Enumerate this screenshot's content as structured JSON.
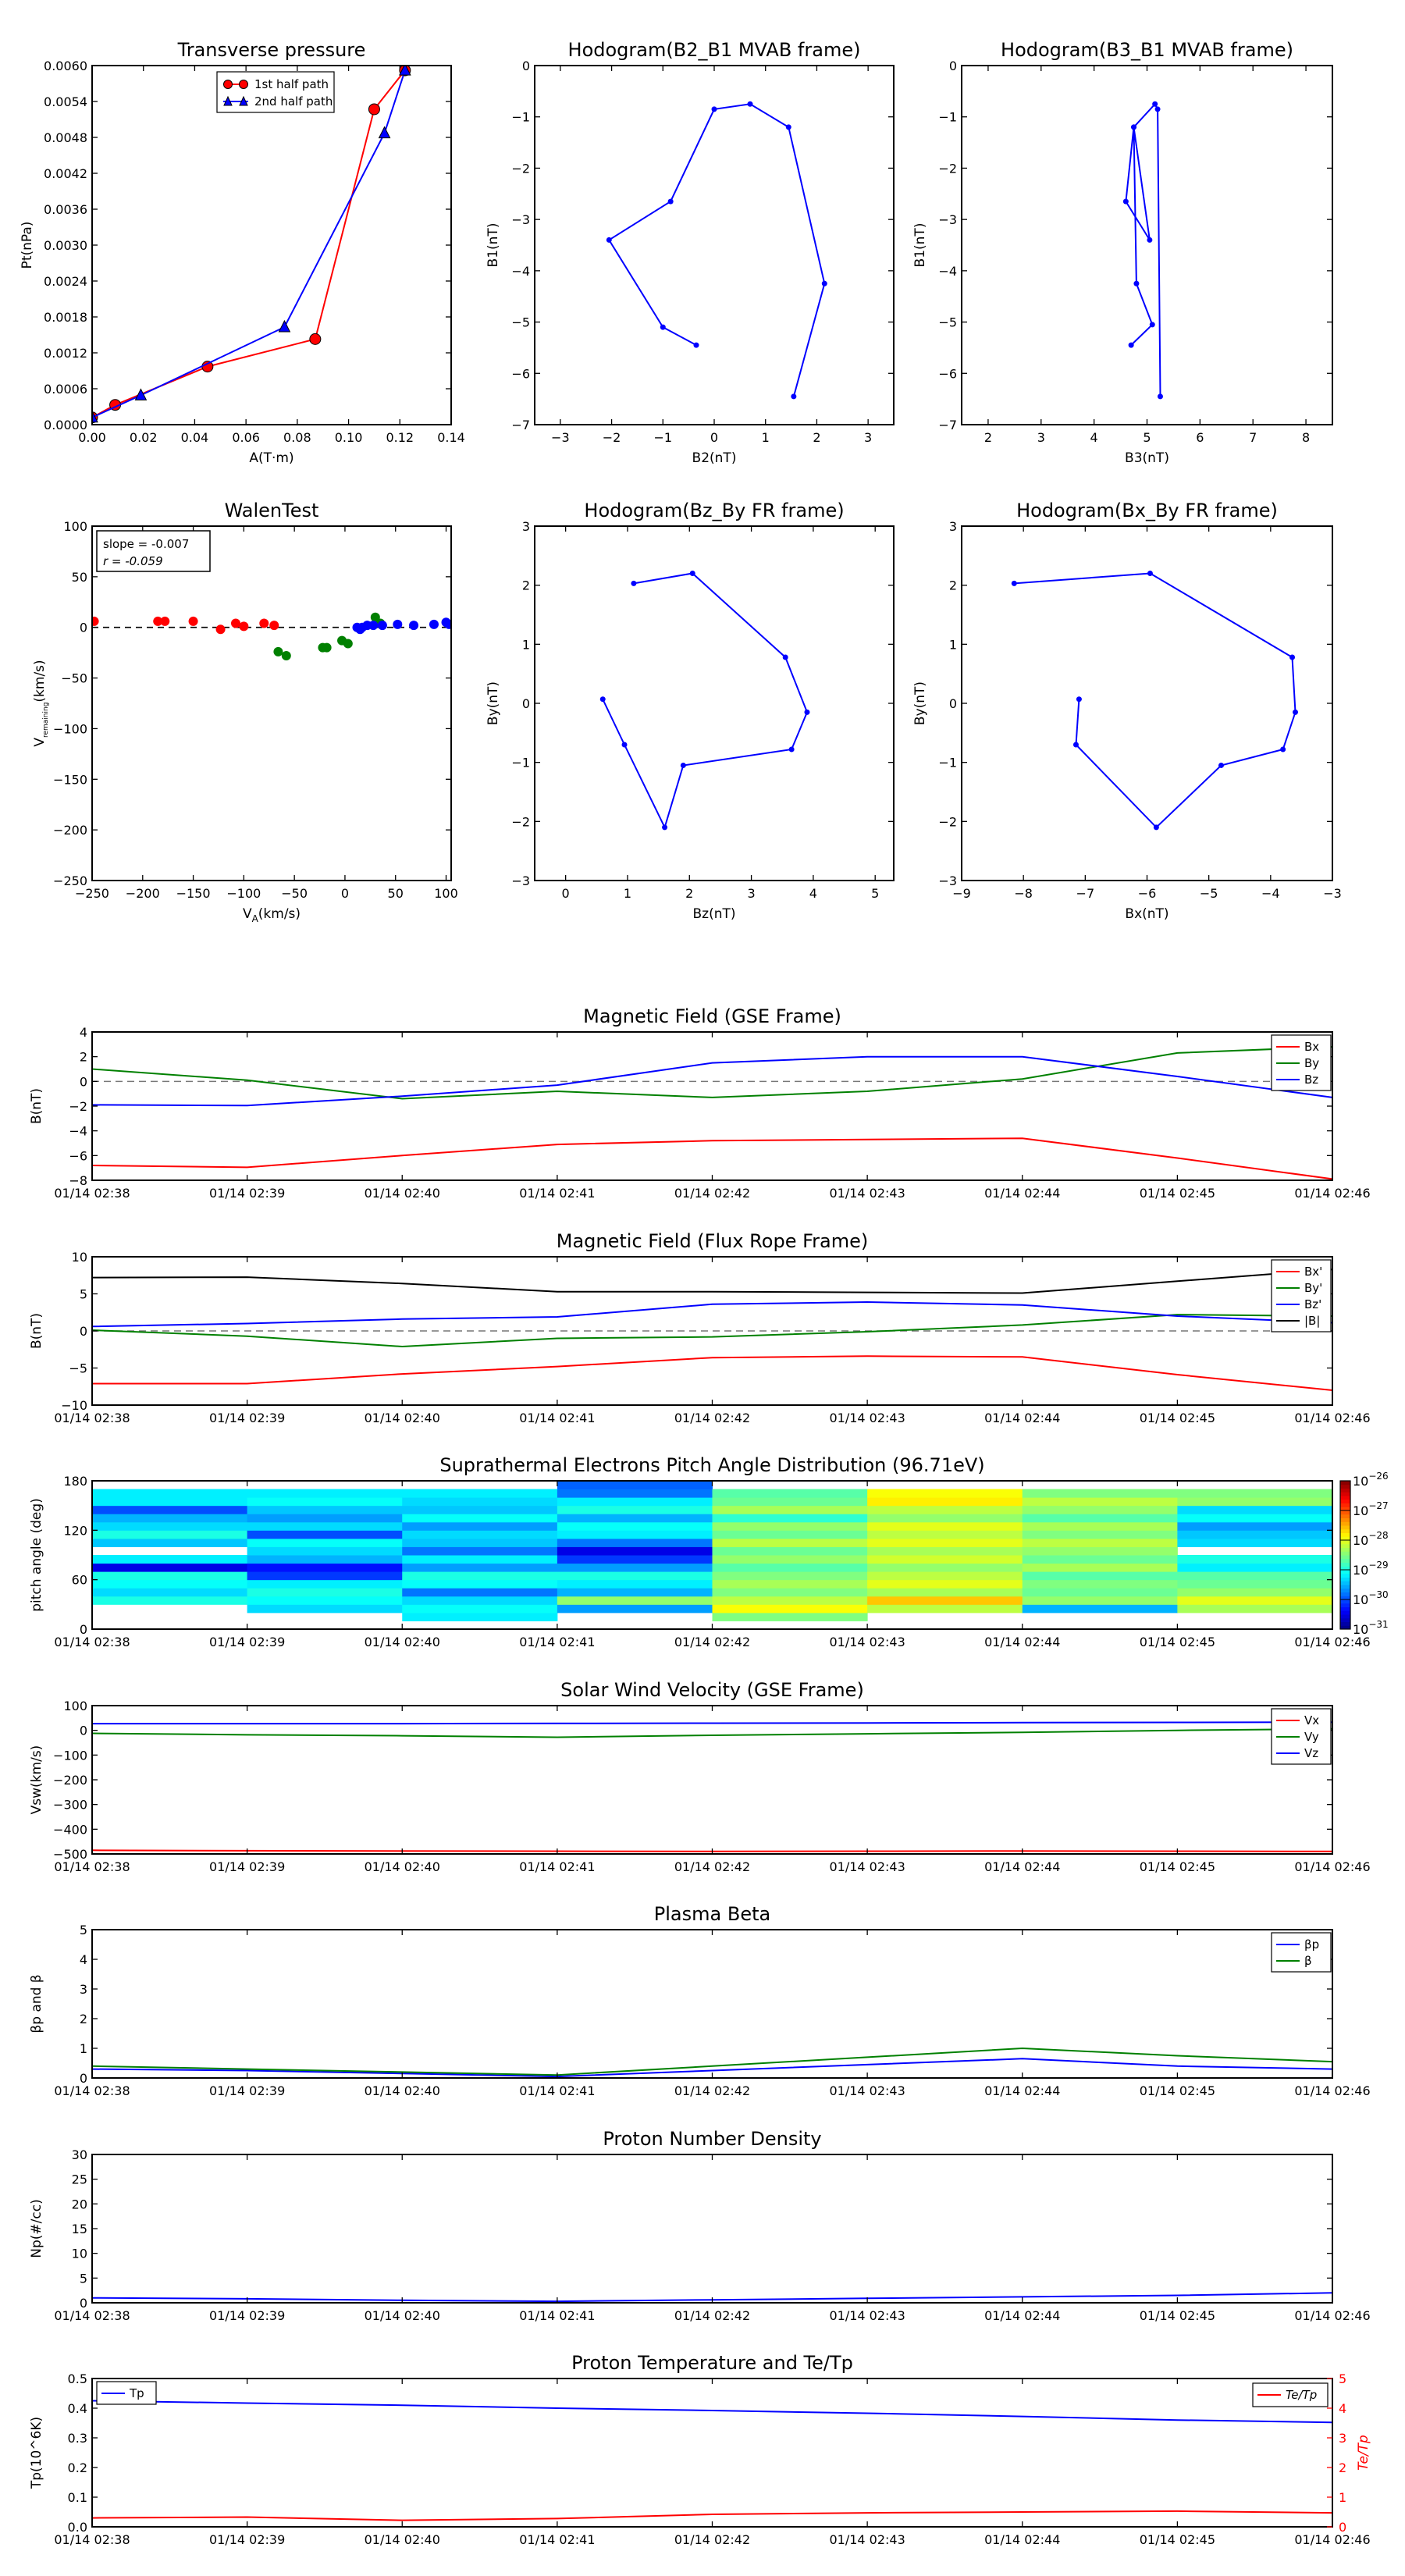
{
  "figure": {
    "top_panels": [
      {
        "id": "tp",
        "title": "Transverse pressure",
        "type": "line",
        "xlabel": "A(T·m)",
        "ylabel": "Pt(nPa)",
        "xlim": [
          0,
          0.14
        ],
        "ylim": [
          0,
          0.006
        ],
        "xticks": [
          "0.00",
          "0.02",
          "0.04",
          "0.06",
          "0.08",
          "0.10",
          "0.12",
          "0.14"
        ],
        "yticks": [
          "0.0000",
          "0.0006",
          "0.0012",
          "0.0018",
          "0.0024",
          "0.0030",
          "0.0036",
          "0.0042",
          "0.0048",
          "0.0054",
          "0.0060"
        ],
        "legend": [
          "1st half path",
          "2nd half path"
        ],
        "series": [
          {
            "name": "1st half path",
            "color": "#ff0000",
            "marker": "circle",
            "x": [
              0.0,
              0.009,
              0.045,
              0.087,
              0.11,
              0.122
            ],
            "y": [
              0.00012,
              0.00033,
              0.00097,
              0.00143,
              0.00527,
              0.00592
            ]
          },
          {
            "name": "2nd half path",
            "color": "#0000ff",
            "marker": "triangle",
            "x": [
              0.0,
              0.019,
              0.075,
              0.114,
              0.122
            ],
            "y": [
              0.00012,
              0.00049,
              0.00163,
              0.00487,
              0.00592
            ]
          }
        ]
      },
      {
        "id": "h1",
        "title": "Hodogram(B2_B1 MVAB frame)",
        "type": "line",
        "xlabel": "B2(nT)",
        "ylabel": "B1(nT)",
        "xlim": [
          -3.5,
          3.5
        ],
        "ylim": [
          -7,
          0
        ],
        "xticks": [
          "−3",
          "−2",
          "−1",
          "0",
          "1",
          "2",
          "3"
        ],
        "yticks": [
          "−7",
          "−6",
          "−5",
          "−4",
          "−3",
          "−2",
          "−1",
          "0"
        ],
        "series": [
          {
            "color": "#0000ff",
            "x": [
              -0.35,
              -1.0,
              -2.05,
              -0.85,
              0.0,
              0.7,
              1.45,
              2.15,
              1.55
            ],
            "y": [
              -5.45,
              -5.1,
              -3.4,
              -2.65,
              -0.85,
              -0.75,
              -1.2,
              -4.25,
              -6.45
            ]
          }
        ]
      },
      {
        "id": "h2",
        "title": "Hodogram(B3_B1 MVAB frame)",
        "type": "line",
        "xlabel": "B3(nT)",
        "ylabel": "B1(nT)",
        "xlim": [
          1.5,
          8.5
        ],
        "ylim": [
          -7,
          0
        ],
        "xticks": [
          "2",
          "3",
          "4",
          "5",
          "6",
          "7",
          "8"
        ],
        "yticks": [
          "−7",
          "−6",
          "−5",
          "−4",
          "−3",
          "−2",
          "−1",
          "0"
        ],
        "series": [
          {
            "color": "#0000ff",
            "x": [
              4.7,
              5.1,
              4.8,
              4.75,
              5.05,
              4.6,
              4.75,
              5.15,
              5.2,
              5.25
            ],
            "y": [
              -5.45,
              -5.05,
              -4.25,
              -1.2,
              -3.4,
              -2.65,
              -1.2,
              -0.75,
              -0.85,
              -6.45
            ]
          }
        ]
      },
      {
        "id": "walen",
        "title": "WalenTest",
        "type": "scatter",
        "xlabel": "V",
        "xlabel_sub": "A",
        "xlabel_unit": "(km/s)",
        "ylabel": "V",
        "ylabel_sub": "remaining",
        "ylabel_unit": "(km/s)",
        "xlim": [
          -250,
          105
        ],
        "ylim": [
          -250,
          100
        ],
        "xticks": [
          "−250",
          "−200",
          "−150",
          "−100",
          "−50",
          "0",
          "50",
          "100"
        ],
        "yticks": [
          "−250",
          "−200",
          "−150",
          "−100",
          "−50",
          "0",
          "50",
          "100"
        ],
        "annotation": [
          "slope = -0.007",
          "r = -0.059"
        ],
        "series": [
          {
            "color": "#ff0000",
            "x": [
              -248,
              -185,
              -178,
              -150,
              -123,
              -108,
              -100,
              -80,
              -70
            ],
            "y": [
              6,
              6,
              6,
              6,
              -2,
              4,
              1,
              4,
              2
            ]
          },
          {
            "color": "#008000",
            "x": [
              -66,
              -58,
              -22,
              -18,
              -3,
              3,
              30,
              35
            ],
            "y": [
              -24,
              -28,
              -20,
              -20,
              -13,
              -16,
              10,
              4
            ]
          },
          {
            "color": "#0000ff",
            "x": [
              12,
              15,
              17,
              22,
              28,
              37,
              52,
              68,
              88,
              100,
              103
            ],
            "y": [
              0,
              -2,
              0,
              2,
              2,
              2,
              3,
              2,
              3,
              5,
              3
            ]
          }
        ]
      },
      {
        "id": "h3",
        "title": "Hodogram(Bz_By FR frame)",
        "type": "line",
        "xlabel": "Bz(nT)",
        "ylabel": "By(nT)",
        "xlim": [
          -0.5,
          5.3
        ],
        "ylim": [
          -3,
          3
        ],
        "xticks": [
          "0",
          "1",
          "2",
          "3",
          "4",
          "5"
        ],
        "yticks": [
          "−3",
          "−2",
          "−1",
          "0",
          "1",
          "2",
          "3"
        ],
        "series": [
          {
            "color": "#0000ff",
            "x": [
              0.6,
              0.95,
              1.6,
              1.9,
              3.65,
              3.9,
              3.55,
              2.05,
              1.1
            ],
            "y": [
              0.07,
              -0.7,
              -2.1,
              -1.05,
              -0.78,
              -0.15,
              0.78,
              2.2,
              2.03
            ]
          }
        ]
      },
      {
        "id": "h4",
        "title": "Hodogram(Bx_By FR frame)",
        "type": "line",
        "xlabel": "Bx(nT)",
        "ylabel": "By(nT)",
        "xlim": [
          -9,
          -3
        ],
        "ylim": [
          -3,
          3
        ],
        "xticks": [
          "−9",
          "−8",
          "−7",
          "−6",
          "−5",
          "−4",
          "−3"
        ],
        "yticks": [
          "−3",
          "−2",
          "−1",
          "0",
          "1",
          "2",
          "3"
        ],
        "series": [
          {
            "color": "#0000ff",
            "x": [
              -7.1,
              -7.15,
              -5.85,
              -4.8,
              -3.8,
              -3.6,
              -3.65,
              -5.95,
              -8.15
            ],
            "y": [
              0.07,
              -0.7,
              -2.1,
              -1.05,
              -0.78,
              -0.15,
              0.78,
              2.2,
              2.03
            ]
          }
        ]
      }
    ],
    "time_axis_labels": [
      "01/14 02:38",
      "01/14 02:39",
      "01/14 02:40",
      "01/14 02:41",
      "01/14 02:42",
      "01/14 02:43",
      "01/14 02:44",
      "01/14 02:45",
      "01/14 02:46"
    ],
    "time_panels": [
      {
        "id": "mag_gse",
        "title": "Magnetic Field (GSE Frame)",
        "type": "line",
        "ylabel": "B(nT)",
        "ylim": [
          -8,
          4
        ],
        "yticks": [
          "−8",
          "−6",
          "−4",
          "−2",
          "0",
          "2",
          "4"
        ],
        "zero_line": true,
        "legend": [
          "Bx",
          "By",
          "Bz"
        ],
        "series": [
          {
            "name": "Bx",
            "color": "#ff0000",
            "values": [
              -6.8,
              -6.95,
              -6.0,
              -5.1,
              -4.8,
              -4.7,
              -4.6,
              -6.2,
              -7.9
            ]
          },
          {
            "name": "By",
            "color": "#008000",
            "values": [
              1.0,
              0.1,
              -1.4,
              -0.8,
              -1.3,
              -0.8,
              0.2,
              2.3,
              2.8
            ]
          },
          {
            "name": "Bz",
            "color": "#0000ff",
            "values": [
              -1.9,
              -1.95,
              -1.2,
              -0.3,
              1.5,
              2.0,
              2.0,
              0.4,
              -1.3
            ]
          }
        ]
      },
      {
        "id": "mag_fr",
        "title": "Magnetic Field (Flux Rope Frame)",
        "type": "line",
        "ylabel": "B(nT)",
        "ylim": [
          -10,
          10
        ],
        "yticks": [
          "−10",
          "−5",
          "0",
          "5",
          "10"
        ],
        "zero_line": true,
        "legend": [
          "Bx'",
          "By'",
          "Bz'",
          "|B|"
        ],
        "series": [
          {
            "name": "Bx'",
            "color": "#ff0000",
            "values": [
              -7.1,
              -7.1,
              -5.8,
              -4.8,
              -3.6,
              -3.4,
              -3.5,
              -5.9,
              -8.0
            ]
          },
          {
            "name": "By'",
            "color": "#008000",
            "values": [
              0.1,
              -0.7,
              -2.1,
              -1.0,
              -0.8,
              -0.1,
              0.8,
              2.2,
              2.0
            ]
          },
          {
            "name": "Bz'",
            "color": "#0000ff",
            "values": [
              0.6,
              1.0,
              1.6,
              1.9,
              3.6,
              3.9,
              3.5,
              2.0,
              1.1
            ]
          },
          {
            "name": "|B|",
            "color": "#000000",
            "values": [
              7.2,
              7.25,
              6.4,
              5.3,
              5.3,
              5.2,
              5.1,
              6.7,
              8.3
            ]
          }
        ]
      },
      {
        "id": "pad",
        "title": "Suprathermal Electrons Pitch Angle Distribution (96.71eV)",
        "type": "heatmap",
        "ylabel": "pitch angle (deg)",
        "ylim": [
          0,
          180
        ],
        "yticks": [
          "0",
          "60",
          "120",
          "180"
        ],
        "colorbar_ticks": [
          "10^-26",
          "10^-27",
          "10^-28",
          "10^-29",
          "10^-30",
          "10^-31"
        ],
        "colorbar_range_log": [
          -31,
          -26
        ],
        "bin_edges_deg": [
          0,
          10,
          20,
          30,
          40,
          50,
          60,
          70,
          80,
          90,
          100,
          110,
          120,
          130,
          140,
          150,
          160,
          170,
          180
        ],
        "columns": [
          [
            -31,
            -31,
            -31,
            -29.0,
            -29.3,
            -29.1,
            -29.0,
            -30.5,
            -29.2,
            -31,
            -29.4,
            -29.0,
            -29.3,
            -29.5,
            -30.0,
            -29.2,
            -29.2,
            -31
          ],
          [
            -31,
            -31,
            -29.3,
            -29.1,
            -29.0,
            -29.2,
            -30.1,
            -30.3,
            -29.5,
            -29.3,
            -29.1,
            -30.0,
            -29.3,
            -29.6,
            -29.4,
            -29.1,
            -29.2,
            -31
          ],
          [
            -31,
            -29.2,
            -29.1,
            -29.3,
            -29.8,
            -29.1,
            -29.0,
            -29.6,
            -29.2,
            -29.8,
            -29.4,
            -29.3,
            -29.6,
            -29.1,
            -29.4,
            -29.3,
            -29.2,
            -31
          ],
          [
            -31,
            -31,
            -29.6,
            -28.4,
            -29.5,
            -29.2,
            -29.0,
            -29.6,
            -30.1,
            -30.5,
            -29.8,
            -29.2,
            -29.1,
            -29.5,
            -29.0,
            -29.2,
            -29.8,
            -29.9
          ],
          [
            -31,
            -28.5,
            -27.9,
            -28.2,
            -28.5,
            -28.3,
            -28.5,
            -28.7,
            -28.4,
            -28.6,
            -28.2,
            -28.6,
            -28.4,
            -28.9,
            -28.3,
            -28.6,
            -28.7,
            -31
          ],
          [
            -31,
            -31,
            -28.2,
            -27.6,
            -28.3,
            -28.0,
            -28.2,
            -28.4,
            -28.1,
            -28.3,
            -28.0,
            -28.2,
            -28.0,
            -28.4,
            -28.2,
            -27.8,
            -27.9,
            -31
          ],
          [
            -31,
            -31,
            -29.5,
            -28.4,
            -28.6,
            -28.5,
            -28.7,
            -28.3,
            -28.6,
            -28.4,
            -28.2,
            -28.5,
            -28.3,
            -28.7,
            -28.4,
            -28.2,
            -28.5,
            -31
          ],
          [
            -31,
            -31,
            -28.3,
            -28.0,
            -28.4,
            -28.6,
            -28.7,
            -29.2,
            -29.0,
            -31,
            -29.3,
            -29.4,
            -29.6,
            -29.1,
            -29.3,
            -28.4,
            -28.5,
            -31
          ]
        ]
      },
      {
        "id": "vsw",
        "title": "Solar Wind Velocity (GSE Frame)",
        "type": "line",
        "ylabel": "Vsw(km/s)",
        "ylim": [
          -500,
          100
        ],
        "yticks": [
          "−500",
          "−400",
          "−300",
          "−200",
          "−100",
          "0",
          "100"
        ],
        "legend": [
          "Vx",
          "Vy",
          "Vz"
        ],
        "series": [
          {
            "name": "Vx",
            "color": "#ff0000",
            "values": [
              -485,
              -487,
              -488,
              -489,
              -490,
              -489,
              -488,
              -489,
              -490
            ]
          },
          {
            "name": "Vy",
            "color": "#008000",
            "values": [
              -12,
              -18,
              -22,
              -28,
              -20,
              -14,
              -8,
              0,
              6
            ]
          },
          {
            "name": "Vz",
            "color": "#0000ff",
            "values": [
              27,
              27,
              27,
              28,
              29,
              30,
              31,
              32,
              33
            ]
          }
        ]
      },
      {
        "id": "beta",
        "title": "Plasma Beta",
        "type": "line",
        "ylabel": "βp and β",
        "ylim": [
          0,
          5
        ],
        "yticks": [
          "0",
          "1",
          "2",
          "3",
          "4",
          "5"
        ],
        "legend": [
          "βp",
          "β"
        ],
        "series": [
          {
            "name": "βp",
            "color": "#0000ff",
            "values": [
              0.3,
              0.25,
              0.15,
              0.05,
              0.25,
              0.45,
              0.65,
              0.4,
              0.3
            ]
          },
          {
            "name": "β",
            "color": "#008000",
            "values": [
              0.4,
              0.3,
              0.2,
              0.1,
              0.4,
              0.7,
              1.0,
              0.75,
              0.55
            ]
          }
        ]
      },
      {
        "id": "np",
        "title": "Proton Number Density",
        "type": "line",
        "ylabel": "Np(#/cc)",
        "ylim": [
          0,
          30
        ],
        "yticks": [
          "0",
          "5",
          "10",
          "15",
          "20",
          "25",
          "30"
        ],
        "series": [
          {
            "name": "Np",
            "color": "#0000ff",
            "values": [
              1.0,
              0.8,
              0.5,
              0.3,
              0.6,
              0.9,
              1.2,
              1.5,
              2.0
            ]
          }
        ]
      },
      {
        "id": "tp",
        "title": "Proton Temperature and Te/Tp",
        "type": "line",
        "ylabel": "Tp(10^6K)",
        "ylim": [
          0,
          0.5
        ],
        "yticks": [
          "0.0",
          "0.1",
          "0.2",
          "0.3",
          "0.4",
          "0.5"
        ],
        "ylabel_right": "Te/Tp",
        "ylim_right": [
          0,
          5
        ],
        "yticks_right": [
          "0",
          "1",
          "2",
          "3",
          "4",
          "5"
        ],
        "legend": [
          "Tp"
        ],
        "legend_right": [
          "Te/Tp"
        ],
        "series": [
          {
            "name": "Tp",
            "color": "#0000ff",
            "axis": "left",
            "values": [
              0.425,
              0.417,
              0.41,
              0.4,
              0.392,
              0.383,
              0.372,
              0.36,
              0.352
            ]
          },
          {
            "name": "Te/Tp",
            "color": "#ff0000",
            "axis": "right",
            "values": [
              0.3,
              0.33,
              0.22,
              0.28,
              0.42,
              0.47,
              0.5,
              0.53,
              0.47
            ]
          }
        ]
      }
    ]
  }
}
